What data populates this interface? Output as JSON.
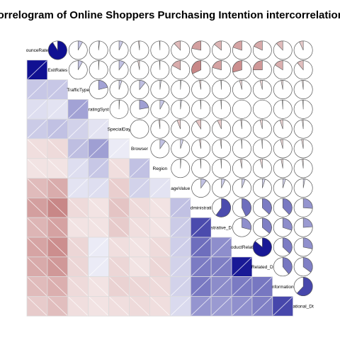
{
  "chart_data": {
    "type": "heatmap",
    "title": "Correlogram of Online Shoppers Purchasing Intention intercorrelations",
    "variables": [
      "BounceRates",
      "ExitRates",
      "TrafficType",
      "OperatingSystems",
      "SpecialDay",
      "Browser",
      "Region",
      "PageValues",
      "Administrative",
      "Administrative_Duration",
      "ProductRelated",
      "ProductRelated_Duration",
      "Informational",
      "Informational_Duration"
    ],
    "diagonal_labels": [
      "ounceRate",
      "ExitRates",
      "TrafficType",
      "ratingSyst",
      "SpecialDay",
      "Browser",
      "Region",
      "ageValue",
      "dministrati",
      "strative_D",
      "oductRelat",
      "Related_D",
      "nformation",
      "ational_Dt"
    ],
    "lower_panel": "shade",
    "upper_panel": "pie",
    "color_scale": {
      "negative": "#8b0000",
      "zero": "#ffffff",
      "positive": "#00008b"
    },
    "correlation_matrix": [
      [
        1.0,
        0.91,
        0.08,
        0.02,
        0.07,
        -0.02,
        -0.01,
        -0.12,
        -0.22,
        -0.14,
        -0.2,
        -0.18,
        -0.12,
        -0.07
      ],
      [
        0.91,
        1.0,
        0.08,
        0.01,
        0.1,
        -0.03,
        -0.01,
        -0.17,
        -0.32,
        -0.21,
        -0.29,
        -0.25,
        -0.16,
        -0.11
      ],
      [
        0.08,
        0.08,
        1.0,
        0.21,
        0.05,
        0.11,
        0.02,
        0.01,
        -0.03,
        -0.01,
        -0.04,
        -0.04,
        -0.03,
        -0.02
      ],
      [
        0.02,
        0.01,
        0.21,
        1.0,
        0.01,
        0.22,
        0.08,
        0.02,
        -0.01,
        -0.01,
        0.0,
        0.0,
        -0.01,
        -0.01
      ],
      [
        0.07,
        0.1,
        0.05,
        0.01,
        1.0,
        0.0,
        -0.02,
        -0.06,
        -0.09,
        -0.07,
        -0.02,
        -0.04,
        -0.05,
        -0.02
      ],
      [
        -0.02,
        -0.03,
        0.11,
        0.22,
        0.0,
        1.0,
        0.1,
        0.05,
        -0.03,
        -0.02,
        -0.01,
        -0.01,
        -0.04,
        -0.03
      ],
      [
        -0.01,
        -0.01,
        0.02,
        0.08,
        -0.02,
        0.1,
        1.0,
        0.01,
        -0.01,
        -0.01,
        -0.03,
        -0.04,
        -0.03,
        -0.02
      ],
      [
        -0.12,
        -0.17,
        0.01,
        0.02,
        -0.06,
        0.05,
        0.01,
        1.0,
        0.1,
        0.07,
        0.06,
        0.05,
        0.05,
        0.03
      ],
      [
        -0.22,
        -0.32,
        -0.03,
        -0.01,
        -0.09,
        -0.03,
        -0.01,
        0.1,
        1.0,
        0.6,
        0.43,
        0.37,
        0.38,
        0.26
      ],
      [
        -0.14,
        -0.21,
        -0.01,
        -0.01,
        -0.07,
        -0.02,
        -0.01,
        0.07,
        0.6,
        1.0,
        0.29,
        0.36,
        0.3,
        0.24
      ],
      [
        -0.2,
        -0.29,
        -0.04,
        0.0,
        -0.02,
        -0.01,
        -0.03,
        0.06,
        0.43,
        0.29,
        1.0,
        0.86,
        0.37,
        0.28
      ],
      [
        -0.18,
        -0.25,
        -0.04,
        0.0,
        -0.04,
        -0.01,
        -0.04,
        0.05,
        0.37,
        0.36,
        0.86,
        1.0,
        0.39,
        0.35
      ],
      [
        -0.12,
        -0.16,
        -0.03,
        -0.01,
        -0.05,
        -0.04,
        -0.03,
        0.05,
        0.38,
        0.3,
        0.37,
        0.39,
        1.0,
        0.62
      ],
      [
        -0.07,
        -0.11,
        -0.02,
        -0.01,
        -0.02,
        -0.03,
        -0.02,
        0.03,
        0.26,
        0.24,
        0.28,
        0.35,
        0.62,
        1.0
      ]
    ]
  }
}
